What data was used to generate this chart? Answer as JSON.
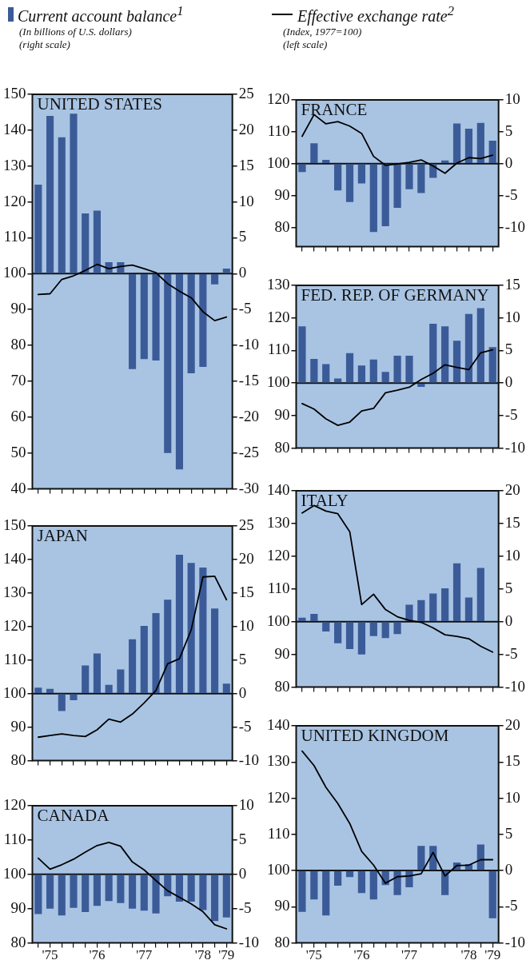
{
  "chart_data": [
    {
      "type": "bar",
      "title": "UNITED STATES",
      "legend": "top",
      "annotations": [
        "(In billions of U.S. dollars)",
        "(right scale)"
      ],
      "categories": [
        null,
        null,
        null,
        null,
        null,
        null,
        null,
        null,
        null,
        null,
        null,
        null,
        null,
        null,
        null,
        null,
        null
      ],
      "ylim": [
        40,
        150
      ],
      "yticks": [
        40,
        50,
        60,
        70,
        80,
        90,
        100,
        110,
        120,
        130,
        140,
        150
      ],
      "y2lim": [
        -30,
        25
      ],
      "y2ticks": [
        -30,
        -25,
        -20,
        -15,
        -10,
        -5,
        0,
        5,
        10,
        15,
        20,
        25
      ],
      "series": [
        {
          "axis": "y2",
          "name": "Current account balance$^{1}$",
          "color": "#3b5b98",
          "values": [
            12.4,
            22.0,
            19.0,
            22.3,
            8.4,
            8.8,
            1.6,
            1.6,
            -13.3,
            -11.9,
            -12.1,
            -25.0,
            -27.3,
            -13.9,
            -13.0,
            -1.5,
            0.7
          ]
        },
        {
          "type": "line",
          "axis": "y",
          "color": "#000000",
          "values": [
            94.2,
            94.4,
            98.4,
            99.4,
            100.9,
            102.6,
            101.4,
            102.0,
            102.4,
            101.4,
            100.3,
            97.2,
            95.1,
            93.3,
            89.4,
            86.9,
            87.9
          ]
        }
      ]
    },
    {
      "type": "bar",
      "title": "JAPAN",
      "categories": [
        null,
        null,
        null,
        null,
        null,
        null,
        null,
        null,
        null,
        null,
        null,
        null,
        null,
        null,
        null,
        null,
        null
      ],
      "ylim": [
        80,
        150
      ],
      "yticks": [
        80,
        90,
        100,
        110,
        120,
        130,
        140,
        150
      ],
      "y2lim": [
        -10,
        25
      ],
      "y2ticks": [
        -10,
        -5,
        0,
        5,
        10,
        15,
        20,
        25
      ],
      "series": [
        {
          "axis": "y2",
          "color": "#3b5b98",
          "values": [
            0.9,
            0.7,
            -2.6,
            -1.0,
            4.2,
            6.0,
            1.3,
            3.6,
            8.1,
            10.1,
            12.0,
            14.0,
            20.7,
            19.5,
            18.8,
            12.7,
            1.5
          ]
        },
        {
          "type": "line",
          "axis": "y",
          "color": "#000000",
          "values": [
            87.0,
            87.5,
            88.0,
            87.5,
            87.2,
            89.2,
            92.4,
            91.5,
            93.9,
            97.2,
            100.9,
            108.9,
            110.4,
            119.0,
            134.8,
            135.0,
            128.0
          ]
        }
      ]
    },
    {
      "type": "bar",
      "title": "CANADA",
      "categories": [
        null,
        "'75",
        null,
        null,
        null,
        "'76",
        null,
        null,
        null,
        "'77",
        null,
        null,
        null,
        null,
        "'78",
        null,
        "'79"
      ],
      "ylim": [
        80,
        120
      ],
      "yticks": [
        80,
        90,
        100,
        110,
        120
      ],
      "y2lim": [
        -10,
        10
      ],
      "y2ticks": [
        -10,
        -5,
        0,
        5,
        10
      ],
      "series": [
        {
          "axis": "y2",
          "color": "#3b5b98",
          "values": [
            -5.8,
            -5.0,
            -6.0,
            -4.9,
            -5.5,
            -4.6,
            -3.9,
            -4.2,
            -5.0,
            -5.3,
            -5.7,
            -3.2,
            -4.0,
            -4.0,
            -5.2,
            -6.8,
            -6.3
          ]
        },
        {
          "type": "line",
          "axis": "y",
          "color": "#000000",
          "values": [
            104.7,
            101.5,
            102.8,
            104.4,
            106.5,
            108.4,
            109.3,
            108.2,
            103.6,
            101.3,
            98.2,
            95.2,
            93.3,
            91.4,
            89.1,
            85.3,
            84.1
          ]
        }
      ]
    },
    {
      "type": "bar",
      "title": "FRANCE",
      "legend": "top",
      "annotations": [
        "(Index, 1977=100)",
        "(left scale)"
      ],
      "categories": [
        null,
        null,
        null,
        null,
        null,
        null,
        null,
        null,
        null,
        null,
        null,
        null,
        null,
        null,
        null,
        null,
        null
      ],
      "ylim": [
        74,
        120
      ],
      "yticks": [
        80,
        90,
        100,
        110,
        120
      ],
      "y2lim": [
        -13,
        10
      ],
      "y2ticks": [
        -10,
        -5,
        0,
        5,
        10
      ],
      "series": [
        {
          "axis": "y2",
          "color": "#3b5b98",
          "values": [
            -1.3,
            3.2,
            0.6,
            -4.2,
            -6.0,
            -3.1,
            -10.7,
            -9.8,
            -6.9,
            -4.0,
            -4.6,
            -2.2,
            0.5,
            6.3,
            5.5,
            6.4,
            3.6
          ]
        },
        {
          "type": "line",
          "axis": "y",
          "name": "Effective exchange rate$^{2}$",
          "color": "#000000",
          "values": [
            108.6,
            115.4,
            112.5,
            113.2,
            111.8,
            109.5,
            102.3,
            99.5,
            99.9,
            100.4,
            101.2,
            99.3,
            97.0,
            100.2,
            101.9,
            101.6,
            102.7
          ]
        }
      ]
    },
    {
      "type": "bar",
      "title": "FED. REP. OF GERMANY",
      "categories": [
        null,
        null,
        null,
        null,
        null,
        null,
        null,
        null,
        null,
        null,
        null,
        null,
        null,
        null,
        null,
        null,
        null
      ],
      "ylim": [
        80,
        130
      ],
      "yticks": [
        80,
        90,
        100,
        110,
        120,
        130
      ],
      "y2lim": [
        -10,
        15
      ],
      "y2ticks": [
        -10,
        -5,
        0,
        5,
        10,
        15
      ],
      "series": [
        {
          "axis": "y2",
          "color": "#3b5b98",
          "values": [
            8.7,
            3.7,
            2.9,
            0.7,
            4.6,
            2.7,
            3.6,
            1.7,
            4.2,
            4.2,
            -0.6,
            9.1,
            8.7,
            6.5,
            10.6,
            11.5,
            5.5
          ]
        },
        {
          "type": "line",
          "axis": "y",
          "color": "#000000",
          "values": [
            93.7,
            92.0,
            89.0,
            87.0,
            88.0,
            91.4,
            92.2,
            97.0,
            97.8,
            98.7,
            101.1,
            103.0,
            105.6,
            104.8,
            104.1,
            109.3,
            110.2
          ]
        }
      ]
    },
    {
      "type": "bar",
      "title": "ITALY",
      "categories": [
        null,
        null,
        null,
        null,
        null,
        null,
        null,
        null,
        null,
        null,
        null,
        null,
        null,
        null,
        null,
        null,
        null
      ],
      "ylim": [
        80,
        140
      ],
      "yticks": [
        80,
        90,
        100,
        110,
        120,
        130,
        140
      ],
      "y2lim": [
        -10,
        20
      ],
      "y2ticks": [
        -10,
        -5,
        0,
        5,
        10,
        15,
        20
      ],
      "series": [
        {
          "axis": "y2",
          "color": "#3b5b98",
          "values": [
            0.6,
            1.2,
            -1.5,
            -3.3,
            -4.2,
            -5.0,
            -2.2,
            -2.5,
            -1.9,
            2.6,
            3.3,
            4.3,
            5.1,
            8.9,
            3.7,
            8.2,
            null
          ]
        },
        {
          "type": "line",
          "axis": "y",
          "color": "#000000",
          "values": [
            133.2,
            135.5,
            133.8,
            133.0,
            127.5,
            105.2,
            108.4,
            103.7,
            101.5,
            100.4,
            99.8,
            98.1,
            96.0,
            95.5,
            94.8,
            92.5,
            90.7
          ]
        }
      ]
    },
    {
      "type": "bar",
      "title": "UNITED KINGDOM",
      "categories": [
        null,
        "'75",
        null,
        null,
        null,
        "'76",
        null,
        null,
        null,
        "'77",
        null,
        null,
        null,
        null,
        "'78",
        null,
        "'79"
      ],
      "ylim": [
        80,
        140
      ],
      "yticks": [
        80,
        90,
        100,
        110,
        120,
        130,
        140
      ],
      "y2lim": [
        -10,
        20
      ],
      "y2ticks": [
        -10,
        -5,
        0,
        5,
        10,
        15,
        20
      ],
      "series": [
        {
          "axis": "y2",
          "color": "#3b5b98",
          "values": [
            -5.7,
            -4.0,
            -6.2,
            -2.1,
            -0.9,
            -3.1,
            -4.0,
            -2.0,
            -3.4,
            -2.3,
            3.4,
            3.4,
            -3.4,
            1.1,
            0.9,
            3.6,
            -6.6
          ]
        },
        {
          "type": "line",
          "axis": "y",
          "color": "#000000",
          "values": [
            133.0,
            129.0,
            123.0,
            118.5,
            113.0,
            105.3,
            101.5,
            96.5,
            98.3,
            98.5,
            99.1,
            105.0,
            98.5,
            101.4,
            101.5,
            103.0,
            103.0
          ]
        }
      ]
    }
  ]
}
